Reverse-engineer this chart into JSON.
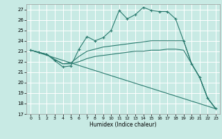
{
  "xlabel": "Humidex (Indice chaleur)",
  "xlim": [
    -0.5,
    23.5
  ],
  "ylim": [
    17,
    27.5
  ],
  "yticks": [
    17,
    18,
    19,
    20,
    21,
    22,
    23,
    24,
    25,
    26,
    27
  ],
  "xticks": [
    0,
    1,
    2,
    3,
    4,
    5,
    6,
    7,
    8,
    9,
    10,
    11,
    12,
    13,
    14,
    15,
    16,
    17,
    18,
    19,
    20,
    21,
    22,
    23
  ],
  "background_color": "#c8eae4",
  "grid_color": "#ffffff",
  "line_color": "#2a7a6e",
  "series": [
    {
      "x": [
        0,
        1,
        2,
        3,
        4,
        5,
        6,
        7,
        8,
        9,
        10,
        11,
        12,
        13,
        14,
        15,
        16,
        17,
        18,
        19,
        20,
        21,
        22,
        23
      ],
      "y": [
        23.1,
        22.9,
        22.7,
        22.1,
        21.5,
        21.6,
        23.2,
        24.4,
        24.0,
        24.3,
        25.0,
        26.9,
        26.1,
        26.5,
        27.2,
        26.9,
        26.8,
        26.8,
        26.1,
        24.0,
        21.8,
        20.5,
        18.5,
        17.5
      ],
      "marker": "+"
    },
    {
      "x": [
        0,
        1,
        2,
        3,
        4,
        5,
        6,
        7,
        8,
        9,
        10,
        11,
        12,
        13,
        14,
        15,
        16,
        17,
        18,
        19,
        20,
        21,
        22,
        23
      ],
      "y": [
        23.1,
        22.9,
        22.7,
        22.2,
        21.8,
        21.9,
        22.5,
        23.0,
        23.2,
        23.4,
        23.5,
        23.6,
        23.7,
        23.8,
        23.9,
        24.0,
        24.0,
        24.0,
        24.0,
        24.0,
        21.8,
        20.5,
        18.5,
        17.5
      ],
      "marker": null
    },
    {
      "x": [
        0,
        1,
        2,
        3,
        4,
        5,
        6,
        7,
        8,
        9,
        10,
        11,
        12,
        13,
        14,
        15,
        16,
        17,
        18,
        19,
        20,
        21,
        22,
        23
      ],
      "y": [
        23.1,
        22.9,
        22.7,
        22.2,
        21.8,
        21.8,
        22.0,
        22.3,
        22.5,
        22.6,
        22.7,
        22.8,
        22.9,
        23.0,
        23.0,
        23.1,
        23.1,
        23.2,
        23.2,
        23.1,
        21.8,
        20.5,
        18.5,
        17.5
      ],
      "marker": null
    },
    {
      "x": [
        0,
        23
      ],
      "y": [
        23.1,
        17.5
      ],
      "marker": null
    }
  ]
}
